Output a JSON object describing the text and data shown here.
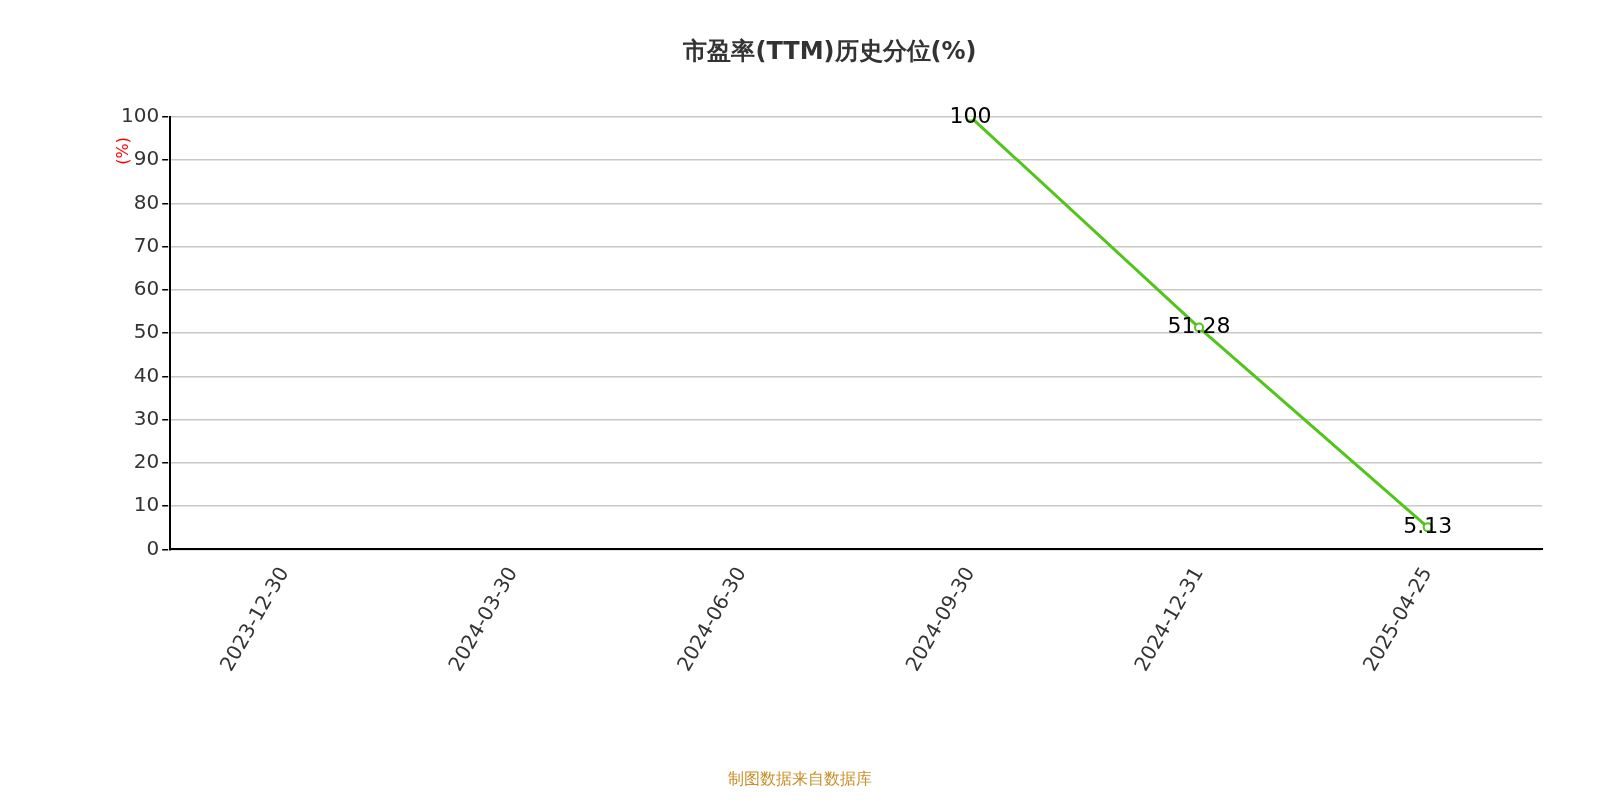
{
  "chart_data": {
    "type": "line",
    "title": "市盈率(TTM)历史分位(%)",
    "ylabel": "(%)",
    "categories": [
      "2023-12-30",
      "2024-03-30",
      "2024-06-30",
      "2024-09-30",
      "2024-12-31",
      "2025-04-25"
    ],
    "series": [
      {
        "color": "#52c41a",
        "values": [
          null,
          null,
          null,
          100,
          51.28,
          5.13
        ]
      }
    ],
    "ylim": [
      0,
      100
    ],
    "yticks": [
      0,
      10,
      20,
      30,
      40,
      50,
      60,
      70,
      80,
      90,
      100
    ],
    "grid": "y",
    "marker": "circle",
    "data_labels": true,
    "annotations": [
      "制图数据来自数据库"
    ]
  }
}
